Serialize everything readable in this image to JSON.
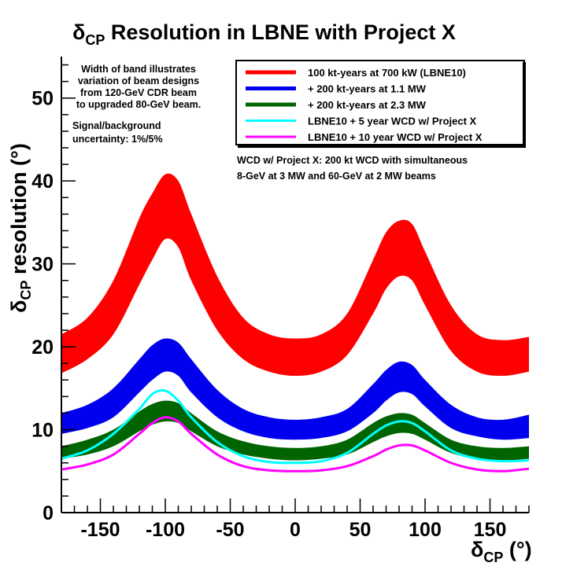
{
  "chart_data": {
    "type": "area",
    "title": {
      "prefix": "δ",
      "sub": "CP",
      "text": " Resolution in LBNE with Project X"
    },
    "xlabel": {
      "prefix": "δ",
      "sub": "CP",
      "unit": " (°)"
    },
    "ylabel": {
      "prefix": "δ",
      "sub": "CP",
      "text": " resolution (°)"
    },
    "xlim": [
      -180,
      180
    ],
    "ylim": [
      0,
      55
    ],
    "xticks": [
      -150,
      -100,
      -50,
      0,
      50,
      100,
      150
    ],
    "yticks": [
      0,
      10,
      20,
      30,
      40,
      50
    ],
    "x": [
      -180,
      -160,
      -140,
      -120,
      -110,
      -100,
      -90,
      -80,
      -60,
      -40,
      -20,
      0,
      20,
      40,
      60,
      70,
      80,
      90,
      100,
      120,
      140,
      160,
      180
    ],
    "series": [
      {
        "name": "100 kt-years at 700 kW (LBNE10)",
        "color": "#ff0000",
        "kind": "band",
        "low": [
          16.8,
          18.5,
          21.5,
          27.5,
          30.5,
          33.0,
          32.0,
          28.0,
          22.0,
          18.5,
          17.0,
          16.5,
          17.0,
          19.0,
          24.0,
          27.0,
          28.5,
          28.0,
          25.0,
          19.5,
          17.0,
          16.5,
          17.0
        ],
        "high": [
          21.5,
          23.5,
          28.0,
          35.5,
          38.5,
          40.8,
          40.0,
          36.0,
          28.5,
          23.5,
          21.5,
          21.0,
          21.5,
          24.0,
          30.5,
          33.8,
          35.2,
          34.8,
          31.5,
          25.0,
          21.5,
          20.8,
          21.2
        ]
      },
      {
        "name": "+ 200 kt-years at 1.1 MW",
        "color": "#0000ee",
        "kind": "band",
        "low": [
          9.5,
          10.2,
          11.5,
          14.5,
          16.0,
          17.0,
          16.5,
          14.5,
          11.5,
          9.8,
          9.0,
          8.8,
          9.0,
          9.8,
          12.0,
          13.5,
          14.5,
          14.3,
          12.8,
          10.2,
          9.2,
          8.8,
          9.0
        ],
        "high": [
          12.0,
          13.0,
          15.0,
          18.5,
          20.2,
          21.0,
          20.5,
          18.5,
          14.8,
          12.5,
          11.5,
          11.2,
          11.5,
          12.5,
          15.5,
          17.2,
          18.2,
          17.8,
          16.0,
          13.0,
          11.5,
          11.2,
          11.8
        ]
      },
      {
        "name": "+ 200 kt-years at 2.3 MW",
        "color": "#006400",
        "kind": "band",
        "low": [
          6.5,
          7.0,
          8.0,
          9.8,
          10.6,
          11.0,
          10.8,
          9.8,
          8.0,
          7.0,
          6.5,
          6.3,
          6.5,
          7.0,
          8.5,
          9.2,
          9.6,
          9.5,
          8.8,
          7.2,
          6.5,
          6.3,
          6.5
        ],
        "high": [
          8.0,
          8.8,
          10.0,
          12.2,
          13.1,
          13.5,
          13.2,
          12.0,
          9.8,
          8.6,
          8.0,
          7.8,
          8.0,
          8.8,
          10.8,
          11.6,
          12.0,
          11.8,
          10.8,
          8.8,
          8.0,
          7.8,
          8.0
        ]
      },
      {
        "name": "LBNE10 + 5 year WCD w/ Project X",
        "color": "#00ffff",
        "kind": "line",
        "values": [
          6.5,
          7.5,
          9.5,
          12.5,
          14.3,
          14.7,
          13.5,
          11.5,
          8.5,
          6.8,
          6.1,
          6.0,
          6.2,
          7.2,
          9.5,
          10.5,
          11.0,
          10.8,
          9.8,
          7.5,
          6.5,
          6.2,
          6.3
        ]
      },
      {
        "name": "LBNE10 + 10 year WCD w/ Project X",
        "color": "#ff00ff",
        "kind": "line",
        "values": [
          5.2,
          5.8,
          7.0,
          9.5,
          10.8,
          11.5,
          11.0,
          9.5,
          7.0,
          5.6,
          5.1,
          5.0,
          5.1,
          5.6,
          6.8,
          7.6,
          8.1,
          8.1,
          7.5,
          6.0,
          5.2,
          5.0,
          5.3
        ]
      }
    ],
    "legend": {
      "placement": "top-right"
    },
    "annotations": {
      "band_note": [
        "Width of band illustrates",
        "variation of beam designs",
        "from 120-GeV CDR beam",
        "to upgraded 80-GeV beam."
      ],
      "uncertainty_note": [
        "Signal/background",
        "uncertainty: 1%/5%"
      ],
      "wcd_note": [
        "WCD w/ Project X: 200 kt WCD with simultaneous",
        "8-GeV at 3 MW and 60-GeV at 2 MW beams"
      ]
    }
  }
}
